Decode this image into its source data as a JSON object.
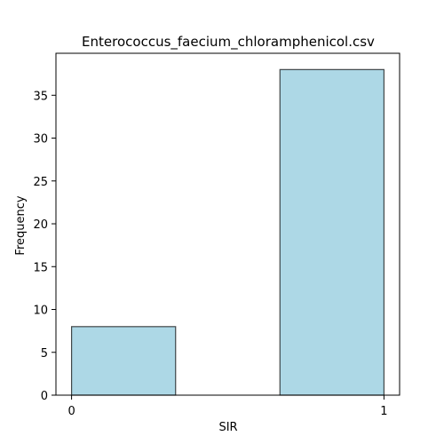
{
  "chart_data": {
    "type": "bar",
    "title": "Enterococcus_faecium_chloramphenicol.csv",
    "xlabel": "SIR",
    "ylabel": "Frequency",
    "bins": [
      {
        "x_start": 0.0,
        "x_end": 0.333,
        "value": 8
      },
      {
        "x_start": 0.667,
        "x_end": 1.0,
        "value": 38
      }
    ],
    "xlim": [
      -0.05,
      1.05
    ],
    "ylim": [
      0,
      39.9
    ],
    "x_ticks": [
      0,
      1
    ],
    "y_ticks": [
      0,
      5,
      10,
      15,
      20,
      25,
      30,
      35
    ],
    "grid": false,
    "colors": {
      "bar_fill": "#add8e6",
      "bar_edge": "#000000",
      "axis": "#000000",
      "background": "#ffffff"
    }
  }
}
